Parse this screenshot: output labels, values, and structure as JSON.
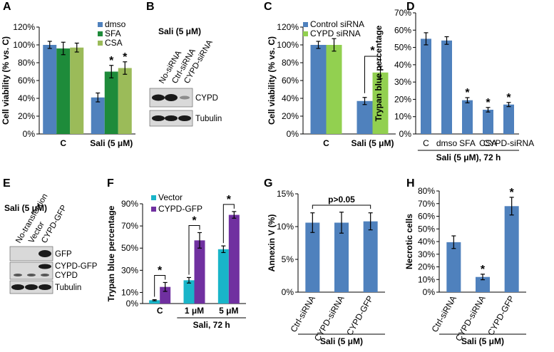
{
  "colors": {
    "blue": "#4f81bd",
    "green": "#1e8b3a",
    "lightgreen": "#9bbb59",
    "brightgreen": "#92d050",
    "cyan": "#19b5c9",
    "purple": "#7030a0",
    "error": "#000000"
  },
  "panels": {
    "A": {
      "label": "A"
    },
    "B": {
      "label": "B",
      "title": "Sali (5 μM)",
      "lanes": [
        "No-siRNA",
        "Ctrl-siRNA",
        "CYPD-siRNA"
      ],
      "bands": [
        "CYPD",
        "Tubulin"
      ]
    },
    "C": {
      "label": "C"
    },
    "D": {
      "label": "D"
    },
    "E": {
      "label": "E",
      "title": "Sali (5 μM)",
      "lanes": [
        "No-transfection",
        "Vector",
        "CYPD-GFP"
      ],
      "bands": [
        "GFP",
        "CYPD-GFP",
        "CYPD",
        "Tubulin"
      ]
    },
    "F": {
      "label": "F"
    },
    "G": {
      "label": "G"
    },
    "H": {
      "label": "H"
    }
  },
  "chart_data": [
    {
      "panel": "A",
      "type": "bar",
      "ylabel": "Cell viability (% vs. C)",
      "yticks": [
        "0%",
        "20%",
        "40%",
        "60%",
        "80%",
        "100%",
        "120%"
      ],
      "ylim": [
        0,
        120
      ],
      "categories": [
        "C",
        "Sali (5 μM)"
      ],
      "series": [
        {
          "name": "dmso",
          "color": "#4f81bd",
          "values": [
            100,
            41
          ],
          "errors": [
            4,
            5
          ]
        },
        {
          "name": "SFA",
          "color": "#1e8b3a",
          "values": [
            96,
            70
          ],
          "errors": [
            7,
            7
          ]
        },
        {
          "name": "CSA",
          "color": "#9bbb59",
          "values": [
            97,
            74
          ],
          "errors": [
            5,
            7
          ]
        }
      ],
      "significance": [
        "*",
        "*"
      ],
      "legend": "top-right"
    },
    {
      "panel": "C",
      "type": "bar",
      "ylabel": "Cell viability (% vs. C)",
      "yticks": [
        "0%",
        "20%",
        "40%",
        "60%",
        "80%",
        "100%",
        "120%"
      ],
      "ylim": [
        0,
        120
      ],
      "categories": [
        "C",
        "Sali (5 μM)"
      ],
      "series": [
        {
          "name": "Control siRNA",
          "color": "#4f81bd",
          "values": [
            100,
            37
          ],
          "errors": [
            4,
            4
          ]
        },
        {
          "name": "CYPD siRNA",
          "color": "#92d050",
          "values": [
            100,
            69
          ],
          "errors": [
            7,
            7
          ]
        }
      ],
      "significance": "*",
      "legend": "top-right"
    },
    {
      "panel": "D",
      "type": "bar",
      "ylabel": "Trypan blue percentage",
      "yticks": [
        "0%",
        "10%",
        "20%",
        "30%",
        "40%",
        "50%",
        "60%",
        "70%"
      ],
      "ylim": [
        0,
        70
      ],
      "categories": [
        "C",
        "dmso",
        "SFA",
        "CSA",
        "CYPD-siRNA"
      ],
      "group_label": "Sali (5 μM), 72 h",
      "series": [
        {
          "name": "Trypan blue",
          "color": "#4f81bd",
          "values": [
            55,
            54,
            19.5,
            14,
            17
          ],
          "errors": [
            3.5,
            2.2,
            1.5,
            1.3,
            1.2
          ]
        }
      ],
      "significance": [
        "",
        "",
        "*",
        "*",
        "*"
      ]
    },
    {
      "panel": "F",
      "type": "bar",
      "ylabel": "Trypan blue percentage",
      "yticks": [
        "0%",
        "10%",
        "30%",
        "50%",
        "70%",
        "90%"
      ],
      "ylim": [
        0,
        90
      ],
      "categories": [
        "C",
        "1 μM",
        "5 μM"
      ],
      "group_label": "Sali, 72 h",
      "series": [
        {
          "name": "Vector",
          "color": "#19b5c9",
          "values": [
            3,
            21,
            49
          ],
          "errors": [
            0.5,
            2.5,
            3
          ]
        },
        {
          "name": "CYPD-GFP",
          "color": "#7030a0",
          "values": [
            15,
            57,
            80
          ],
          "errors": [
            4,
            7,
            3
          ]
        }
      ],
      "significance": [
        "*",
        "*",
        "*"
      ],
      "legend": "top-left"
    },
    {
      "panel": "G",
      "type": "bar",
      "ylabel": "Annexin V (%)",
      "yticks": [
        "0%",
        "5%",
        "10%",
        "15%"
      ],
      "ylim": [
        0,
        15
      ],
      "categories": [
        "Ctrl-siRNA",
        "CYPD-siRNA",
        "CYPD-GFP"
      ],
      "group_label": "Sali (5 μM)",
      "series": [
        {
          "name": "Annexin V",
          "color": "#4f81bd",
          "values": [
            10.6,
            10.6,
            10.8
          ],
          "errors": [
            1.5,
            1.6,
            1.3
          ]
        }
      ],
      "annotation": "p>0.05"
    },
    {
      "panel": "H",
      "type": "bar",
      "ylabel": "Necrotic cells",
      "yticks": [
        "0%",
        "10%",
        "20%",
        "30%",
        "40%",
        "50%",
        "60%",
        "70%",
        "80%"
      ],
      "ylim": [
        0,
        80
      ],
      "categories": [
        "Ctrl-siRNA",
        "CYPD-siRNA",
        "CYPD-GFP"
      ],
      "group_label": "Sali (5 μM)",
      "series": [
        {
          "name": "Necrotic",
          "color": "#4f81bd",
          "values": [
            39.5,
            12,
            68
          ],
          "errors": [
            5,
            2.2,
            7
          ]
        }
      ],
      "significance": [
        "",
        "*",
        "*"
      ]
    }
  ]
}
